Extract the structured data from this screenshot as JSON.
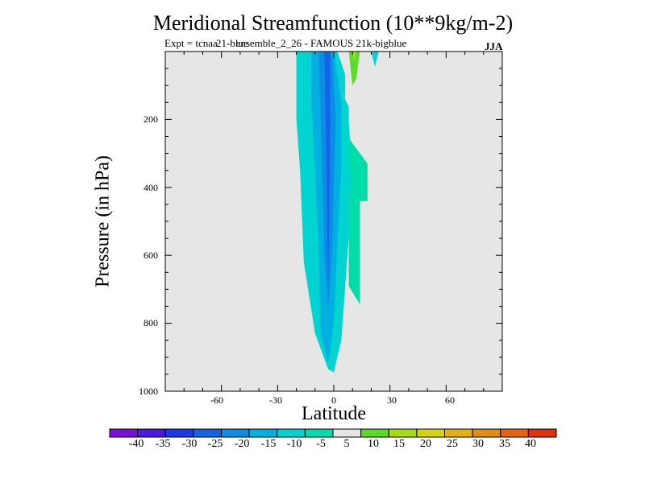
{
  "chart_data": {
    "type": "contour",
    "title": "Meridional Streamfunction (10**9kg/m-2)",
    "subtitle": "Expt = tcnaa       ensemble_2_26 - FAMOUS 21k-bigblue",
    "overlay_text": "21-blue",
    "season": "JJA",
    "xlabel": "Latitude",
    "ylabel": "Pressure (in hPa)",
    "xlim": [
      -90,
      90
    ],
    "ylim": [
      0,
      1000
    ],
    "x_ticks": [
      -60,
      -30,
      0,
      30,
      60
    ],
    "y_ticks": [
      200,
      400,
      600,
      800,
      1000
    ],
    "colorbar": {
      "levels": [
        -40,
        -35,
        -30,
        -25,
        -20,
        -15,
        -10,
        -5,
        5,
        10,
        15,
        20,
        25,
        30,
        35,
        40
      ],
      "colors": [
        "#7a10d8",
        "#4a18e0",
        "#2038e6",
        "#1464e8",
        "#0c8ce6",
        "#00b0e0",
        "#00d4d0",
        "#00dcaa",
        "#e6e6e6",
        "#5cdc28",
        "#a8dc10",
        "#d2d410",
        "#e6b010",
        "#e68a10",
        "#e66410",
        "#e03010"
      ]
    },
    "regions": [
      {
        "name": "core-minus10",
        "band": -10,
        "points": [
          [
            -20,
            0
          ],
          [
            2,
            0
          ],
          [
            8,
            100
          ],
          [
            8,
            210
          ],
          [
            10,
            350
          ],
          [
            8,
            420
          ],
          [
            8,
            545
          ],
          [
            6,
            700
          ],
          [
            4,
            850
          ],
          [
            0,
            945
          ],
          [
            -3,
            935
          ],
          [
            -10,
            830
          ],
          [
            -16,
            620
          ],
          [
            -18,
            350
          ],
          [
            -20,
            200
          ]
        ]
      },
      {
        "name": "core-minus15",
        "band": -15,
        "points": [
          [
            -12,
            0
          ],
          [
            0,
            0
          ],
          [
            4,
            150
          ],
          [
            4,
            350
          ],
          [
            2,
            550
          ],
          [
            0,
            800
          ],
          [
            -3,
            915
          ],
          [
            -7,
            830
          ],
          [
            -8,
            600
          ],
          [
            -10,
            350
          ],
          [
            -12,
            150
          ]
        ]
      },
      {
        "name": "core-minus20",
        "band": -20,
        "points": [
          [
            -8,
            0
          ],
          [
            -1,
            0
          ],
          [
            1,
            200
          ],
          [
            0,
            400
          ],
          [
            -1,
            600
          ],
          [
            -3,
            760
          ],
          [
            -5,
            600
          ],
          [
            -6,
            400
          ],
          [
            -7,
            200
          ]
        ]
      },
      {
        "name": "core-minus25",
        "band": -25,
        "points": [
          [
            -5,
            0
          ],
          [
            -2,
            0
          ],
          [
            -2,
            300
          ],
          [
            -3,
            700
          ],
          [
            -4,
            300
          ]
        ]
      },
      {
        "name": "arm-minus5",
        "band": -5,
        "points": [
          [
            8,
            255
          ],
          [
            18,
            330
          ],
          [
            22,
            360
          ],
          [
            20,
            400
          ],
          [
            20,
            440
          ],
          [
            8,
            440
          ]
        ]
      },
      {
        "name": "arm-minus5-low",
        "band": -5,
        "points": [
          [
            8,
            440
          ],
          [
            14,
            440
          ],
          [
            14,
            745
          ],
          [
            8,
            690
          ]
        ]
      },
      {
        "name": "arm-minus10",
        "band": -10,
        "points": [
          [
            5,
            350
          ],
          [
            10,
            365
          ],
          [
            8,
            420
          ],
          [
            5,
            420
          ]
        ]
      },
      {
        "name": "trace-minus10",
        "band": -10,
        "points": [
          [
            20,
            0
          ],
          [
            24,
            0
          ],
          [
            22,
            45
          ]
        ]
      },
      {
        "name": "pos-left",
        "band": 5,
        "points": [
          [
            -27,
            0
          ],
          [
            -23,
            0
          ],
          [
            -23,
            170
          ],
          [
            -26,
            195
          ],
          [
            -27,
            100
          ]
        ]
      },
      {
        "name": "pos-top",
        "band": 5,
        "points": [
          [
            6,
            0
          ],
          [
            18,
            0
          ],
          [
            17,
            140
          ],
          [
            14,
            230
          ],
          [
            6,
            140
          ]
        ]
      },
      {
        "name": "pos-top-inner",
        "band": 10,
        "points": [
          [
            8,
            0
          ],
          [
            14,
            0
          ],
          [
            12,
            80
          ],
          [
            10,
            100
          ]
        ]
      },
      {
        "name": "pos-top-yellow",
        "band": 15,
        "points": [
          [
            10,
            0
          ],
          [
            12,
            0
          ],
          [
            11,
            30
          ]
        ]
      },
      {
        "name": "pos-right",
        "band": 5,
        "points": [
          [
            18,
            305
          ],
          [
            25,
            310
          ],
          [
            27,
            600
          ],
          [
            26,
            820
          ],
          [
            22,
            800
          ],
          [
            18,
            600
          ]
        ]
      }
    ]
  }
}
